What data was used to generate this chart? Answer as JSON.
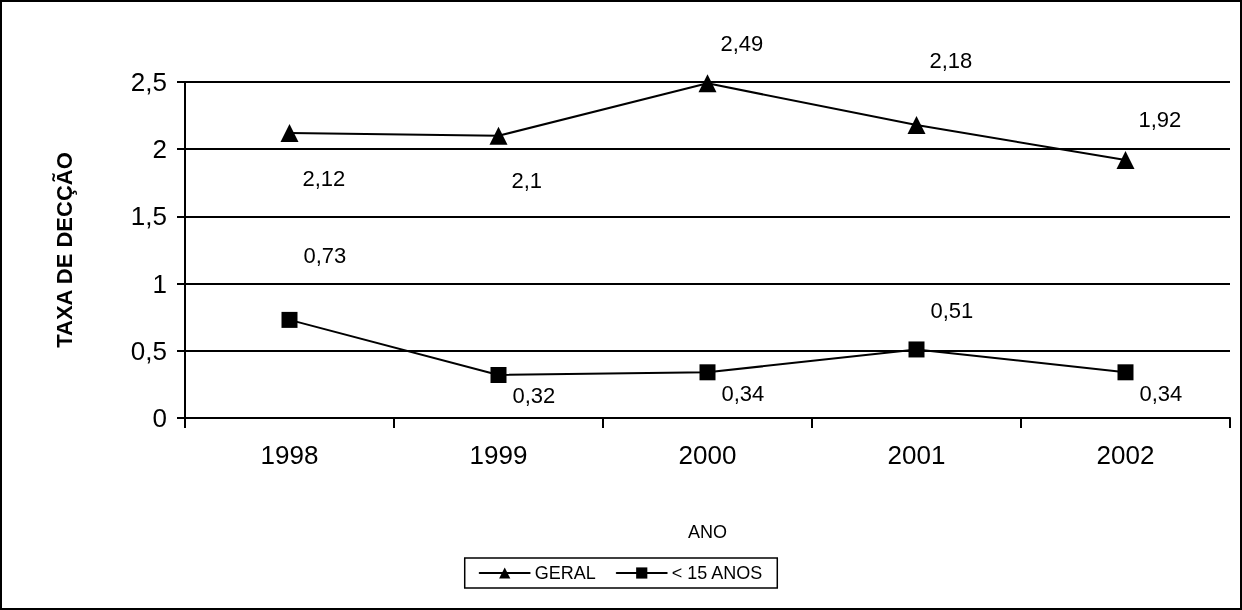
{
  "chart_data": {
    "type": "line",
    "xlabel": "ANO",
    "ylabel": "TAXA DE DECÇÃO",
    "categories": [
      "1998",
      "1999",
      "2000",
      "2001",
      "2002"
    ],
    "series": [
      {
        "name": "GERAL",
        "color": "#000000",
        "marker": "triangle",
        "values": [
          2.12,
          2.1,
          2.49,
          2.18,
          1.92
        ],
        "value_labels": [
          "2,12",
          "2,1",
          "2,49",
          "2,18",
          "1,92"
        ]
      },
      {
        "name": "< 15 ANOS",
        "color": "#000000",
        "marker": "square",
        "values": [
          0.73,
          0.32,
          0.34,
          0.51,
          0.34
        ],
        "value_labels": [
          "0,73",
          "0,32",
          "0,34",
          "0,51",
          "0,34"
        ]
      }
    ],
    "ylim": [
      0,
      2.5
    ],
    "yticks": [
      0,
      {
        "value": 0.5,
        "label": "0,5"
      },
      1,
      {
        "value": 1.5,
        "label": "1,5"
      },
      2,
      {
        "value": 2.5,
        "label": "2,5"
      }
    ],
    "grid": "y",
    "legend": "bottom",
    "line_style": "solid"
  }
}
